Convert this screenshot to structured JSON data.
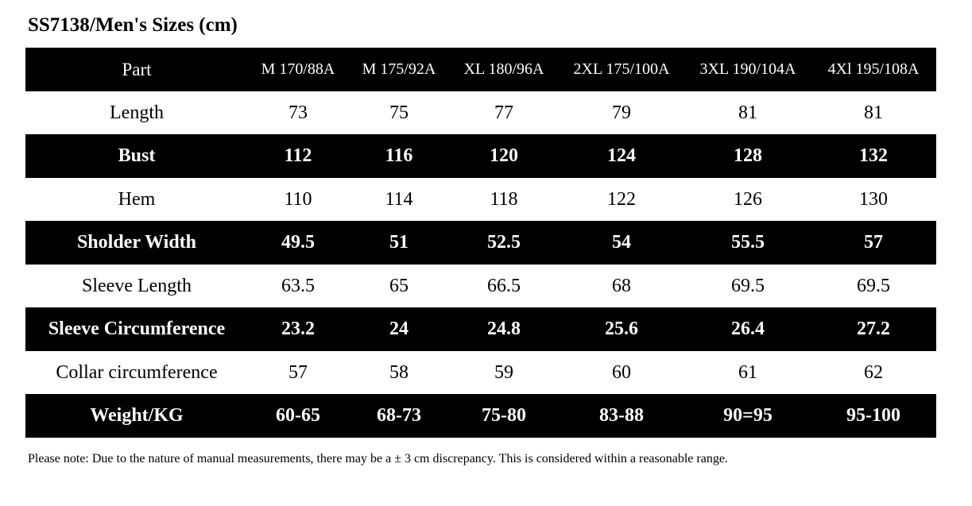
{
  "title": "SS7138/Men's Sizes (cm)",
  "table": {
    "header": [
      "Part",
      "M 170/88A",
      "M 175/92A",
      "XL 180/96A",
      "2XL 175/100A",
      "3XL 190/104A",
      "4Xl 195/108A"
    ],
    "rows": [
      [
        "Length",
        73,
        75,
        77,
        79,
        81,
        81
      ],
      [
        "Bust",
        112,
        116,
        120,
        124,
        128,
        132
      ],
      [
        "Hem",
        110,
        114,
        118,
        122,
        126,
        130
      ],
      [
        "Sholder Width",
        49.5,
        51,
        52.5,
        54,
        55.5,
        57
      ],
      [
        "Sleeve Length",
        63.5,
        65,
        66.5,
        68,
        69.5,
        69.5
      ],
      [
        "Sleeve Circumference",
        23.2,
        24,
        24.8,
        25.6,
        26.4,
        27.2
      ],
      [
        "Collar circumference",
        57,
        58,
        59,
        60,
        61,
        62
      ],
      [
        "Weight/KG",
        "60-65",
        "68-73",
        "75-80",
        "83-88",
        "90=95",
        "95-100"
      ]
    ]
  },
  "note": "Please note: Due to the nature of manual measurements, there may be a ± 3 cm discrepancy. This is considered within a reasonable range."
}
